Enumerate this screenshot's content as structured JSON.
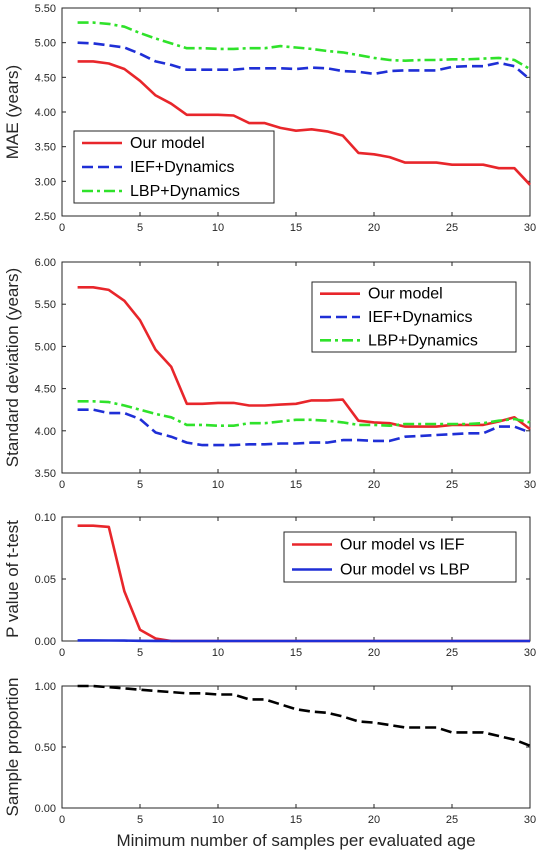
{
  "chart_data": [
    {
      "type": "line",
      "ylabel": "MAE (years)",
      "xlabel": "",
      "xlim": [
        0,
        30
      ],
      "ylim": [
        2.5,
        5.5
      ],
      "xticks": [
        "0",
        "5",
        "10",
        "15",
        "20",
        "25",
        "30"
      ],
      "yticks": [
        "2.50",
        "3.00",
        "3.50",
        "4.00",
        "4.50",
        "5.00",
        "5.50"
      ],
      "legend_position": "bottom-left",
      "x": [
        1,
        2,
        3,
        4,
        5,
        6,
        7,
        8,
        9,
        10,
        11,
        12,
        13,
        14,
        15,
        16,
        17,
        18,
        19,
        20,
        21,
        22,
        23,
        24,
        25,
        26,
        27,
        28,
        29,
        30
      ],
      "series": [
        {
          "name": "Our model",
          "color": "#e8262b",
          "dash": "solid",
          "values": [
            4.73,
            4.73,
            4.7,
            4.62,
            4.45,
            4.24,
            4.12,
            3.96,
            3.96,
            3.96,
            3.95,
            3.84,
            3.84,
            3.77,
            3.73,
            3.75,
            3.72,
            3.66,
            3.41,
            3.39,
            3.35,
            3.27,
            3.27,
            3.27,
            3.24,
            3.24,
            3.24,
            3.19,
            3.19,
            2.95
          ]
        },
        {
          "name": "IEF+Dynamics",
          "color": "#1f2fd6",
          "dash": "dashed",
          "values": [
            5.0,
            4.99,
            4.96,
            4.93,
            4.84,
            4.73,
            4.68,
            4.61,
            4.61,
            4.61,
            4.61,
            4.63,
            4.63,
            4.63,
            4.62,
            4.64,
            4.63,
            4.59,
            4.58,
            4.55,
            4.59,
            4.6,
            4.6,
            4.6,
            4.65,
            4.66,
            4.66,
            4.71,
            4.66,
            4.47
          ]
        },
        {
          "name": "LBP+Dynamics",
          "color": "#2fe22a",
          "dash": "dashdot",
          "values": [
            5.29,
            5.29,
            5.27,
            5.23,
            5.14,
            5.06,
            4.99,
            4.92,
            4.92,
            4.91,
            4.91,
            4.92,
            4.92,
            4.95,
            4.93,
            4.91,
            4.88,
            4.86,
            4.82,
            4.78,
            4.75,
            4.74,
            4.75,
            4.75,
            4.76,
            4.76,
            4.77,
            4.78,
            4.75,
            4.62
          ]
        }
      ]
    },
    {
      "type": "line",
      "ylabel": "Standard deviation (years)",
      "xlabel": "",
      "xlim": [
        0,
        30
      ],
      "ylim": [
        3.5,
        6.0
      ],
      "xticks": [
        "0",
        "5",
        "10",
        "15",
        "20",
        "25",
        "30"
      ],
      "yticks": [
        "3.50",
        "4.00",
        "4.50",
        "5.00",
        "5.50",
        "6.00"
      ],
      "legend_position": "top-right",
      "x": [
        1,
        2,
        3,
        4,
        5,
        6,
        7,
        8,
        9,
        10,
        11,
        12,
        13,
        14,
        15,
        16,
        17,
        18,
        19,
        20,
        21,
        22,
        23,
        24,
        25,
        26,
        27,
        28,
        29,
        30
      ],
      "series": [
        {
          "name": "Our model",
          "color": "#e8262b",
          "dash": "solid",
          "values": [
            5.7,
            5.7,
            5.67,
            5.54,
            5.31,
            4.96,
            4.76,
            4.32,
            4.32,
            4.33,
            4.33,
            4.3,
            4.3,
            4.31,
            4.32,
            4.36,
            4.36,
            4.37,
            4.12,
            4.1,
            4.09,
            4.05,
            4.05,
            4.05,
            4.07,
            4.07,
            4.07,
            4.11,
            4.16,
            4.02
          ]
        },
        {
          "name": "IEF+Dynamics",
          "color": "#1f2fd6",
          "dash": "dashed",
          "values": [
            4.25,
            4.25,
            4.21,
            4.21,
            4.14,
            3.98,
            3.93,
            3.86,
            3.83,
            3.83,
            3.83,
            3.84,
            3.84,
            3.85,
            3.85,
            3.86,
            3.86,
            3.89,
            3.89,
            3.88,
            3.88,
            3.93,
            3.94,
            3.95,
            3.96,
            3.97,
            3.97,
            4.05,
            4.05,
            3.98
          ]
        },
        {
          "name": "LBP+Dynamics",
          "color": "#2fe22a",
          "dash": "dashdot",
          "values": [
            4.35,
            4.35,
            4.34,
            4.3,
            4.25,
            4.2,
            4.16,
            4.07,
            4.07,
            4.06,
            4.06,
            4.09,
            4.09,
            4.11,
            4.13,
            4.13,
            4.12,
            4.1,
            4.07,
            4.07,
            4.06,
            4.08,
            4.08,
            4.08,
            4.08,
            4.08,
            4.09,
            4.12,
            4.14,
            4.1
          ]
        }
      ]
    },
    {
      "type": "line",
      "ylabel": "P value of t-test",
      "xlabel": "",
      "xlim": [
        0,
        30
      ],
      "ylim": [
        0,
        0.1
      ],
      "xticks": [
        "0",
        "5",
        "10",
        "15",
        "20",
        "25",
        "30"
      ],
      "yticks": [
        "0.00",
        "0.05",
        "0.10"
      ],
      "legend_position": "top-right",
      "x": [
        1,
        2,
        3,
        4,
        5,
        6,
        7,
        8,
        9,
        10,
        11,
        12,
        13,
        14,
        15,
        16,
        17,
        18,
        19,
        20,
        21,
        22,
        23,
        24,
        25,
        26,
        27,
        28,
        29,
        30
      ],
      "series": [
        {
          "name": "Our model vs IEF",
          "color": "#e8262b",
          "dash": "solid",
          "values": [
            0.093,
            0.093,
            0.092,
            0.04,
            0.009,
            0.002,
            0.0,
            0.0,
            0.0,
            0.0,
            0.0,
            0.0,
            0.0,
            0.0,
            0.0,
            0.0,
            0.0,
            0.0,
            0.0,
            0.0,
            0.0,
            0.0,
            0.0,
            0.0,
            0.0,
            0.0,
            0.0,
            0.0,
            0.0,
            0.0
          ]
        },
        {
          "name": "Our model vs LBP",
          "color": "#1f2fd6",
          "dash": "solid",
          "values": [
            0.0005,
            0.0005,
            0.0004,
            0.0003,
            0.0002,
            0.0001,
            0.0,
            0.0,
            0.0,
            0.0,
            0.0,
            0.0,
            0.0,
            0.0,
            0.0,
            0.0,
            0.0,
            0.0,
            0.0,
            0.0,
            0.0,
            0.0,
            0.0,
            0.0,
            0.0,
            0.0,
            0.0,
            0.0,
            0.0,
            0.0
          ]
        }
      ]
    },
    {
      "type": "line",
      "ylabel": "Sample proportion",
      "xlabel": "Minimum number of samples per evaluated age",
      "xlim": [
        0,
        30
      ],
      "ylim": [
        0,
        1
      ],
      "xticks": [
        "0",
        "5",
        "10",
        "15",
        "20",
        "25",
        "30"
      ],
      "yticks": [
        "0.00",
        "0.50",
        "1.00"
      ],
      "legend_position": "none",
      "x": [
        1,
        2,
        3,
        4,
        5,
        6,
        7,
        8,
        9,
        10,
        11,
        12,
        13,
        14,
        15,
        16,
        17,
        18,
        19,
        20,
        21,
        22,
        23,
        24,
        25,
        26,
        27,
        28,
        29,
        30
      ],
      "series": [
        {
          "color": "#000000",
          "dash": "dashed",
          "values": [
            1.0,
            1.0,
            0.99,
            0.98,
            0.97,
            0.96,
            0.95,
            0.94,
            0.94,
            0.93,
            0.93,
            0.89,
            0.89,
            0.85,
            0.81,
            0.79,
            0.78,
            0.75,
            0.71,
            0.7,
            0.68,
            0.66,
            0.66,
            0.66,
            0.62,
            0.62,
            0.62,
            0.59,
            0.56,
            0.51
          ]
        }
      ]
    }
  ]
}
